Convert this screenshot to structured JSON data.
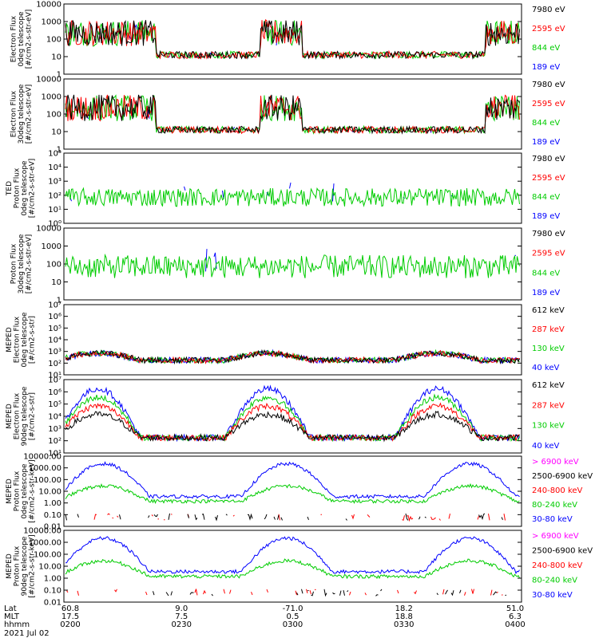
{
  "chart_data": [
    {
      "type": "line",
      "ylabel": [
        "Electron Flux",
        "0deg telescope",
        "[#/cm2-s-str-eV]"
      ],
      "yscale": "log",
      "ylim": [
        1,
        10000
      ],
      "ytick_labels": [
        "1",
        "10",
        "100",
        "1000",
        "10000"
      ],
      "legend": [
        {
          "name": "7980 eV",
          "color": "#000000"
        },
        {
          "name": "2595 eV",
          "color": "#ff0000"
        },
        {
          "name": "844 eV",
          "color": "#00cc00"
        },
        {
          "name": "189 eV",
          "color": "#0000ff"
        }
      ]
    },
    {
      "type": "line",
      "ylabel": [
        "Electron Flux",
        "30deg telescope",
        "[#/cm2-s-str-eV]"
      ],
      "yscale": "log",
      "ylim": [
        1,
        10000
      ],
      "ytick_labels": [
        "1",
        "10",
        "100",
        "1000",
        "10000"
      ],
      "legend": [
        {
          "name": "7980 eV",
          "color": "#000000"
        },
        {
          "name": "2595 eV",
          "color": "#ff0000"
        },
        {
          "name": "844 eV",
          "color": "#00cc00"
        },
        {
          "name": "189 eV",
          "color": "#0000ff"
        }
      ]
    },
    {
      "type": "line",
      "ylabel": [
        "TED",
        "Proton Flux",
        "0deg telescope",
        "[#/cm2-s-str-eV]"
      ],
      "yscale": "log",
      "ylim": [
        1,
        100000
      ],
      "ytick_labels": [
        "10⁰",
        "10¹",
        "10²",
        "10³",
        "10⁴",
        "10⁵"
      ],
      "legend": [
        {
          "name": "7980 eV",
          "color": "#000000"
        },
        {
          "name": "2595 eV",
          "color": "#ff0000"
        },
        {
          "name": "844 eV",
          "color": "#00cc00"
        },
        {
          "name": "189 eV",
          "color": "#0000ff"
        }
      ]
    },
    {
      "type": "line",
      "ylabel": [
        "Proton Flux",
        "30deg telescope",
        "[#/cm2-s-str-eV]"
      ],
      "yscale": "log",
      "ylim": [
        1,
        10000
      ],
      "ytick_labels": [
        "1",
        "10",
        "100",
        "1000",
        "10000"
      ],
      "legend": [
        {
          "name": "7980 eV",
          "color": "#000000"
        },
        {
          "name": "2595 eV",
          "color": "#ff0000"
        },
        {
          "name": "844 eV",
          "color": "#00cc00"
        },
        {
          "name": "189 eV",
          "color": "#0000ff"
        }
      ]
    },
    {
      "type": "line",
      "ylabel": [
        "MEPED",
        "Electron Flux",
        "0deg telescope",
        "[#/cm2-s-str]"
      ],
      "yscale": "log",
      "ylim": [
        10,
        10000000
      ],
      "ytick_labels": [
        "10¹",
        "10²",
        "10³",
        "10⁴",
        "10⁵",
        "10⁶",
        "10⁷"
      ],
      "legend": [
        {
          "name": "612 keV",
          "color": "#000000"
        },
        {
          "name": "287 keV",
          "color": "#ff0000"
        },
        {
          "name": "130 keV",
          "color": "#00cc00"
        },
        {
          "name": "40 keV",
          "color": "#0000ff"
        }
      ]
    },
    {
      "type": "line",
      "ylabel": [
        "MEPED",
        "Electron Flux",
        "90deg telescope",
        "[#/cm2-s-str]"
      ],
      "yscale": "log",
      "ylim": [
        10,
        10000000
      ],
      "ytick_labels": [
        "10¹",
        "10²",
        "10³",
        "10⁴",
        "10⁵",
        "10⁶",
        "10⁷"
      ],
      "legend": [
        {
          "name": "612 keV",
          "color": "#000000"
        },
        {
          "name": "287 keV",
          "color": "#ff0000"
        },
        {
          "name": "130 keV",
          "color": "#00cc00"
        },
        {
          "name": "40 keV",
          "color": "#0000ff"
        }
      ]
    },
    {
      "type": "line",
      "ylabel": [
        "MEPED",
        "Proton Flux",
        "0deg telescope",
        "[#/cm2-s-str-keV]"
      ],
      "yscale": "log",
      "ylim": [
        0.01,
        10000
      ],
      "ytick_labels": [
        "0.01",
        "0.10",
        "1.00",
        "10.00",
        "100.00",
        "1000.00",
        "10000.00"
      ],
      "legend": [
        {
          "name": "> 6900 keV",
          "color": "#ff00ff"
        },
        {
          "name": "2500-6900 keV",
          "color": "#000000"
        },
        {
          "name": "240-800 keV",
          "color": "#ff0000"
        },
        {
          "name": "80-240 keV",
          "color": "#00cc00"
        },
        {
          "name": "30-80 keV",
          "color": "#0000ff"
        }
      ]
    },
    {
      "type": "line",
      "ylabel": [
        "MEPED",
        "Proton Flux",
        "90deg telescope",
        "[#/cm2-s-str-keV]"
      ],
      "yscale": "log",
      "ylim": [
        0.01,
        10000
      ],
      "ytick_labels": [
        "0.01",
        "0.10",
        "1.00",
        "10.00",
        "100.00",
        "1000.00",
        "10000.00"
      ],
      "legend": [
        {
          "name": "> 6900 keV",
          "color": "#ff00ff"
        },
        {
          "name": "2500-6900 keV",
          "color": "#000000"
        },
        {
          "name": "240-800 keV",
          "color": "#ff0000"
        },
        {
          "name": "80-240 keV",
          "color": "#00cc00"
        },
        {
          "name": "30-80 keV",
          "color": "#0000ff"
        }
      ]
    }
  ],
  "x_axis": {
    "row_labels": [
      "Lat",
      "MLT",
      "hhmm"
    ],
    "ticks": [
      {
        "values": [
          "60.8",
          "17.5",
          "0200"
        ]
      },
      {
        "values": [
          "9.0",
          "7.5",
          "0230"
        ]
      },
      {
        "values": [
          "-71.0",
          "0.5",
          "0300"
        ]
      },
      {
        "values": [
          "18.2",
          "18.8",
          "0330"
        ]
      },
      {
        "values": [
          "51.0",
          "6.3",
          "0400"
        ]
      }
    ],
    "date": "2021 Jul 02"
  }
}
